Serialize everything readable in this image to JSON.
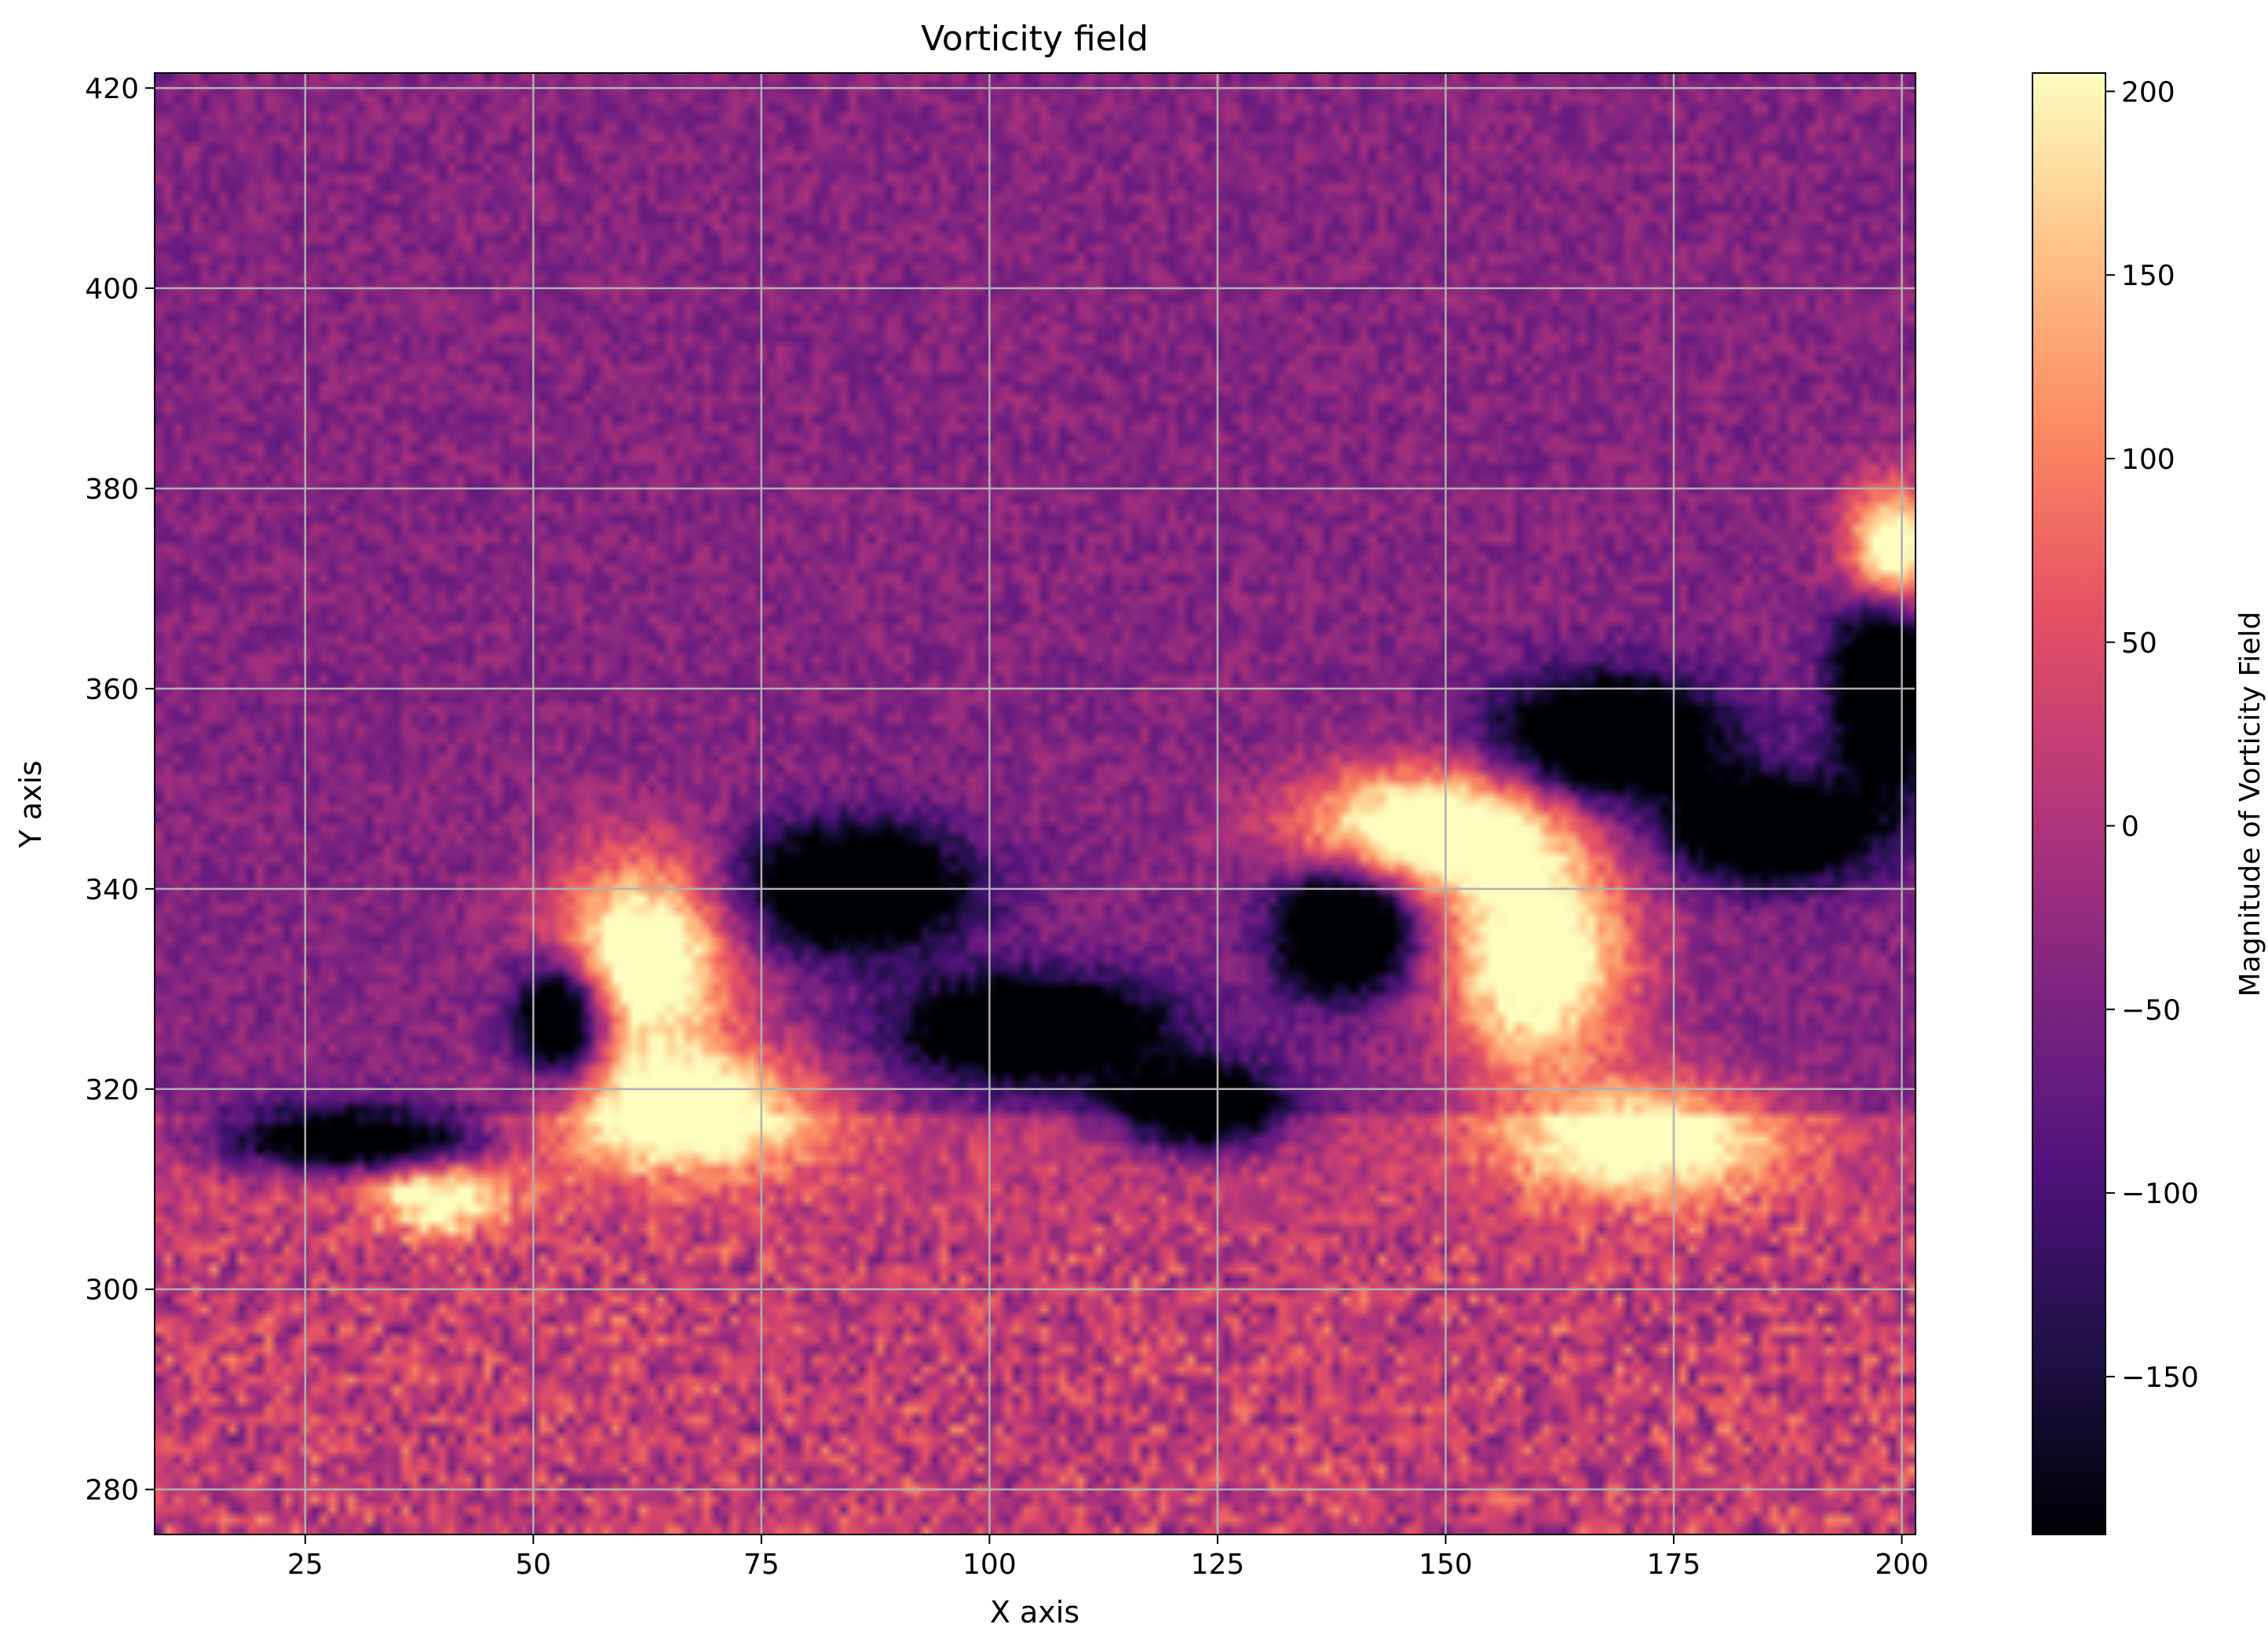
{
  "chart_data": {
    "type": "heatmap",
    "title": "Vorticity field",
    "xlabel": "X axis",
    "ylabel": "Y axis",
    "xlim": [
      8.5,
      201.5
    ],
    "ylim": [
      275.5,
      421.5
    ],
    "xticks": [
      25,
      50,
      75,
      100,
      125,
      150,
      175,
      200
    ],
    "yticks": [
      280,
      300,
      320,
      340,
      360,
      380,
      400,
      420
    ],
    "grid": true,
    "colormap": "magma",
    "colorbar": {
      "label": "Magnitude of Vorticity Field",
      "range": [
        -193,
        205
      ],
      "ticks": [
        -150,
        -100,
        -50,
        0,
        50,
        100,
        150,
        200
      ]
    },
    "features": {
      "background_mean": -40,
      "positive_vortices": [
        {
          "x": 62,
          "y": 332,
          "value": 205
        },
        {
          "x": 152,
          "y": 345,
          "value": 205
        },
        {
          "x": 200,
          "y": 375,
          "value": 205
        }
      ],
      "negative_vortices": [
        {
          "x": 53,
          "y": 327,
          "value": -193
        },
        {
          "x": 140,
          "y": 336,
          "value": -193
        },
        {
          "x": 198,
          "y": 360,
          "value": -193
        }
      ]
    }
  }
}
